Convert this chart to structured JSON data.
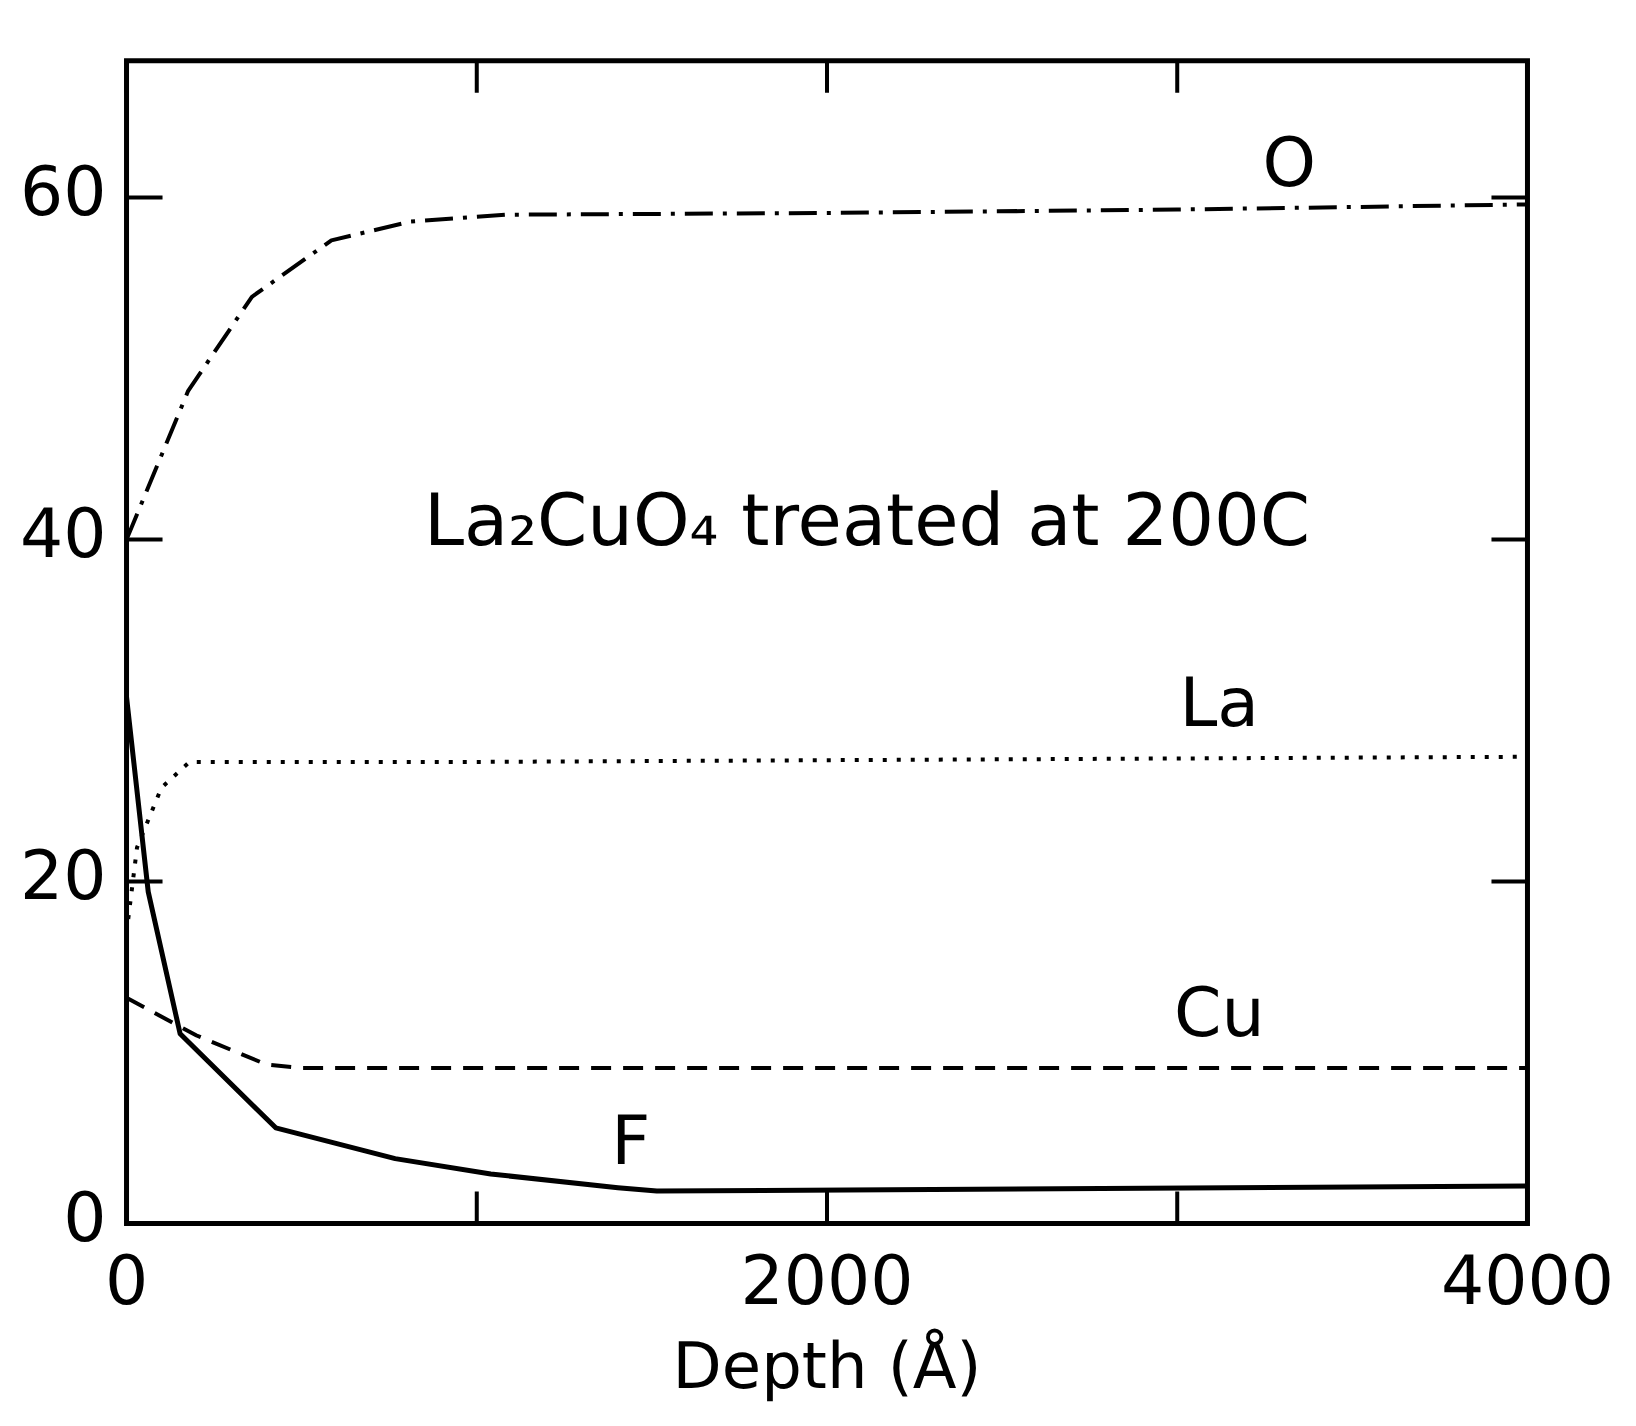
{
  "chart_data": {
    "type": "line",
    "title": "La₂CuO₄ treated at 200C",
    "xlabel": "Depth (Å)",
    "xlim": [
      0,
      4000
    ],
    "xticks": [
      0,
      {
        "value": 1000,
        "label": null
      },
      2000,
      {
        "value": 3000,
        "label": null
      },
      4000
    ],
    "ylim": [
      0,
      68
    ],
    "yticks": [
      0,
      20,
      40,
      60
    ],
    "grid": false,
    "legend": false,
    "marker": "none",
    "series": [
      {
        "name": "O",
        "color": "#000000",
        "line_style": "dashdot",
        "x": [
          0,
          85,
          176,
          358,
          585,
          812,
          1085,
          2000,
          3000,
          4000
        ],
        "values": [
          40,
          44.2,
          48.7,
          54.2,
          57.5,
          58.6,
          59,
          59.1,
          59.3,
          59.6
        ]
      },
      {
        "name": "La",
        "color": "#000000",
        "line_style": "dotted",
        "x": [
          0,
          30,
          100,
          180,
          1000,
          4000
        ],
        "values": [
          17,
          22,
          25.5,
          27,
          27,
          27.3
        ]
      },
      {
        "name": "Cu",
        "color": "#000000",
        "line_style": "dashed",
        "x": [
          0,
          200,
          400,
          500,
          4000
        ],
        "values": [
          13.2,
          11,
          9.3,
          9.1,
          9.1
        ]
      },
      {
        "name": "F",
        "color": "#000000",
        "line_style": "solid",
        "x": [
          0,
          62,
          153,
          426,
          767,
          1040,
          1403,
          1514,
          4000
        ],
        "values": [
          30.8,
          19.4,
          11.1,
          5.6,
          3.8,
          2.9,
          2.1,
          1.9,
          2.2
        ]
      }
    ]
  }
}
